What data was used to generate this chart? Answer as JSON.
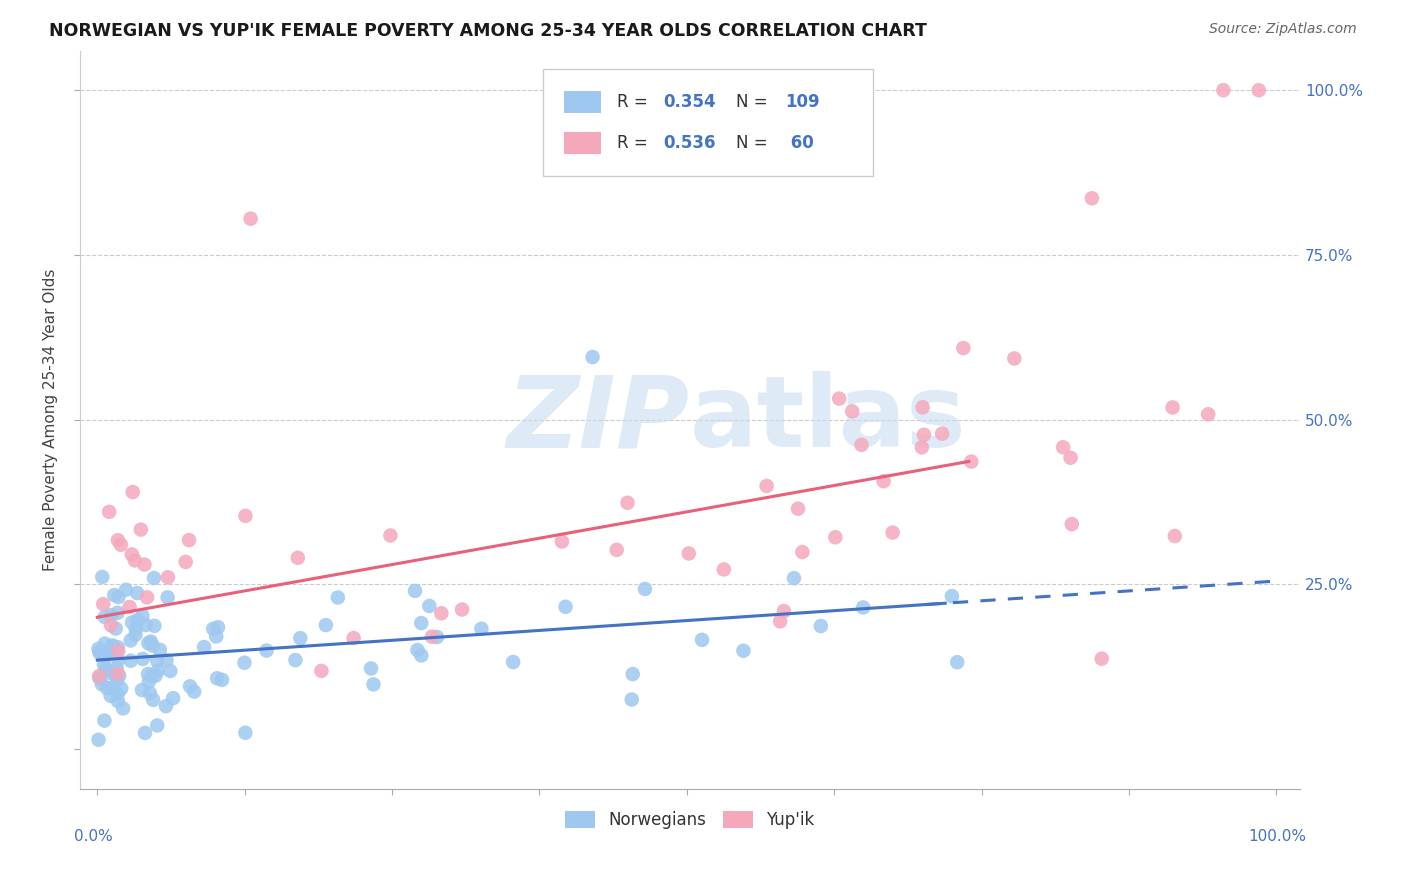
{
  "title": "NORWEGIAN VS YUP'IK FEMALE POVERTY AMONG 25-34 YEAR OLDS CORRELATION CHART",
  "source": "Source: ZipAtlas.com",
  "ylabel": "Female Poverty Among 25-34 Year Olds",
  "blue_color": "#9EC8F0",
  "pink_color": "#F5A8BC",
  "blue_line_color": "#4472C4",
  "pink_line_color": "#E8607A",
  "blue_r": 0.354,
  "blue_n": 109,
  "pink_r": 0.536,
  "pink_n": 60,
  "watermark": "ZIPAtlas",
  "nor_intercept": 0.135,
  "nor_slope": 0.12,
  "yup_intercept": 0.2,
  "yup_slope": 0.32
}
